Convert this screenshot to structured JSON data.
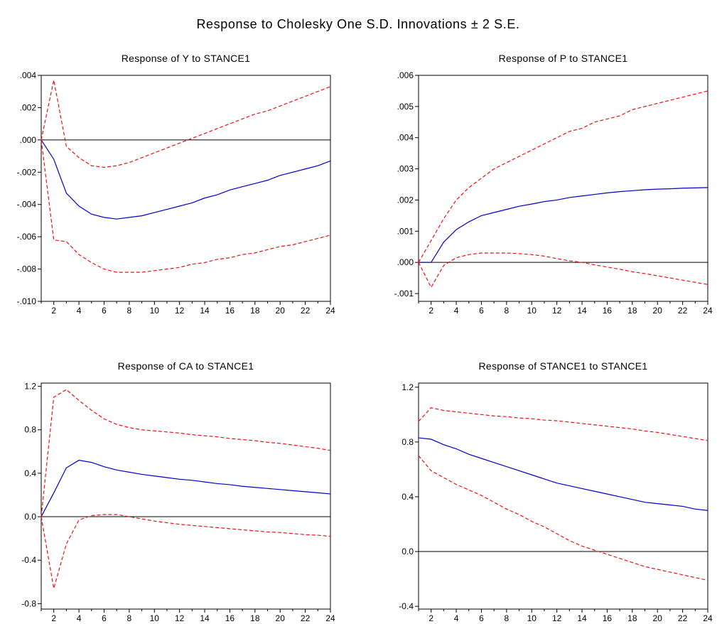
{
  "figure": {
    "title": "Response to Cholesky One S.D. Innovations ± 2 S.E."
  },
  "colors": {
    "irf": "#0000cc",
    "band": "#ee1111",
    "zero": "#000000",
    "frame": "#000000"
  },
  "chart_data": [
    {
      "type": "line",
      "title": "Response of Y to STANCE1",
      "xlabel": "",
      "ylabel": "",
      "x": [
        1,
        2,
        3,
        4,
        5,
        6,
        7,
        8,
        9,
        10,
        11,
        12,
        13,
        14,
        15,
        16,
        17,
        18,
        19,
        20,
        21,
        22,
        23,
        24
      ],
      "xlim": [
        1,
        24
      ],
      "ylim": [
        -0.01,
        0.004
      ],
      "xticks": [
        2,
        4,
        6,
        8,
        10,
        12,
        14,
        16,
        18,
        20,
        22,
        24
      ],
      "xtick_labels": [
        "2",
        "4",
        "6",
        "8",
        "10",
        "12",
        "14",
        "16",
        "18",
        "20",
        "22",
        "24"
      ],
      "yticks": [
        -0.01,
        -0.008,
        -0.006,
        -0.004,
        -0.002,
        0.0,
        0.002,
        0.004
      ],
      "ytick_labels": [
        "-.010",
        "-.008",
        "-.006",
        "-.004",
        "-.002",
        ".000",
        ".002",
        ".004"
      ],
      "zero_line": true,
      "grid": false,
      "series": [
        {
          "role": "irf",
          "values": [
            0.0,
            -0.0012,
            -0.0033,
            -0.0041,
            -0.0046,
            -0.0048,
            -0.0049,
            -0.0048,
            -0.0047,
            -0.0045,
            -0.0043,
            -0.0041,
            -0.0039,
            -0.0036,
            -0.0034,
            -0.0031,
            -0.0029,
            -0.0027,
            -0.0025,
            -0.0022,
            -0.002,
            -0.0018,
            -0.0016,
            -0.0013
          ]
        },
        {
          "role": "upper",
          "values": [
            0.0,
            0.0037,
            -0.0004,
            -0.0011,
            -0.0016,
            -0.0017,
            -0.0016,
            -0.0014,
            -0.0011,
            -0.0008,
            -0.0005,
            -0.0002,
            0.0001,
            0.0004,
            0.0007,
            0.001,
            0.0013,
            0.0016,
            0.0018,
            0.0021,
            0.0024,
            0.0027,
            0.003,
            0.0033
          ]
        },
        {
          "role": "lower",
          "values": [
            0.0,
            -0.0062,
            -0.0063,
            -0.0071,
            -0.0076,
            -0.008,
            -0.0082,
            -0.0082,
            -0.0082,
            -0.0081,
            -0.008,
            -0.0079,
            -0.0077,
            -0.0076,
            -0.0074,
            -0.0073,
            -0.0071,
            -0.007,
            -0.0068,
            -0.0066,
            -0.0065,
            -0.0063,
            -0.0061,
            -0.0059
          ]
        }
      ]
    },
    {
      "type": "line",
      "title": "Response of P to STANCE1",
      "xlabel": "",
      "ylabel": "",
      "x": [
        1,
        2,
        3,
        4,
        5,
        6,
        7,
        8,
        9,
        10,
        11,
        12,
        13,
        14,
        15,
        16,
        17,
        18,
        19,
        20,
        21,
        22,
        23,
        24
      ],
      "xlim": [
        1,
        24
      ],
      "ylim": [
        -0.00125,
        0.006
      ],
      "xticks": [
        2,
        4,
        6,
        8,
        10,
        12,
        14,
        16,
        18,
        20,
        22,
        24
      ],
      "xtick_labels": [
        "2",
        "4",
        "6",
        "8",
        "10",
        "12",
        "14",
        "16",
        "18",
        "20",
        "22",
        "24"
      ],
      "yticks": [
        -0.001,
        0.0,
        0.001,
        0.002,
        0.003,
        0.004,
        0.005,
        0.006
      ],
      "ytick_labels": [
        "-.001",
        ".000",
        ".001",
        ".002",
        ".003",
        ".004",
        ".005",
        ".006"
      ],
      "zero_line": true,
      "grid": false,
      "series": [
        {
          "role": "irf",
          "values": [
            0.0,
            0.0,
            0.00065,
            0.00105,
            0.0013,
            0.0015,
            0.0016,
            0.0017,
            0.0018,
            0.00187,
            0.00195,
            0.002,
            0.00208,
            0.00213,
            0.00218,
            0.00223,
            0.00227,
            0.0023,
            0.00233,
            0.00235,
            0.00236,
            0.00238,
            0.00239,
            0.0024
          ]
        },
        {
          "role": "upper",
          "values": [
            0.0,
            0.0007,
            0.0014,
            0.002,
            0.0024,
            0.0027,
            0.003,
            0.0032,
            0.0034,
            0.0036,
            0.0038,
            0.004,
            0.0042,
            0.0043,
            0.0045,
            0.0046,
            0.0047,
            0.0049,
            0.005,
            0.0051,
            0.0052,
            0.0053,
            0.0054,
            0.0055
          ]
        },
        {
          "role": "lower",
          "values": [
            0.0,
            -0.0008,
            -0.0001,
            0.00015,
            0.00025,
            0.0003,
            0.0003,
            0.0003,
            0.00028,
            0.00025,
            0.0002,
            0.00012,
            5e-05,
            0.0,
            -8e-05,
            -0.00015,
            -0.00022,
            -0.0003,
            -0.00036,
            -0.00043,
            -0.0005,
            -0.00057,
            -0.00064,
            -0.00071
          ]
        }
      ]
    },
    {
      "type": "line",
      "title": "Response of CA to STANCE1",
      "xlabel": "",
      "ylabel": "",
      "x": [
        1,
        2,
        3,
        4,
        5,
        6,
        7,
        8,
        9,
        10,
        11,
        12,
        13,
        14,
        15,
        16,
        17,
        18,
        19,
        20,
        21,
        22,
        23,
        24
      ],
      "xlim": [
        1,
        24
      ],
      "ylim": [
        -0.85,
        1.23
      ],
      "xticks": [
        2,
        4,
        6,
        8,
        10,
        12,
        14,
        16,
        18,
        20,
        22,
        24
      ],
      "xtick_labels": [
        "2",
        "4",
        "6",
        "8",
        "10",
        "12",
        "14",
        "16",
        "18",
        "20",
        "22",
        "24"
      ],
      "yticks": [
        -0.8,
        -0.4,
        0.0,
        0.4,
        0.8,
        1.2
      ],
      "ytick_labels": [
        "-0.8",
        "-0.4",
        "0.0",
        "0.4",
        "0.8",
        "1.2"
      ],
      "zero_line": true,
      "grid": false,
      "series": [
        {
          "role": "irf",
          "values": [
            0.0,
            0.22,
            0.45,
            0.52,
            0.5,
            0.46,
            0.43,
            0.41,
            0.39,
            0.375,
            0.36,
            0.345,
            0.335,
            0.32,
            0.305,
            0.295,
            0.28,
            0.27,
            0.26,
            0.25,
            0.24,
            0.23,
            0.22,
            0.21
          ]
        },
        {
          "role": "upper",
          "values": [
            0.0,
            1.1,
            1.17,
            1.07,
            0.98,
            0.9,
            0.85,
            0.82,
            0.8,
            0.79,
            0.78,
            0.77,
            0.755,
            0.745,
            0.735,
            0.72,
            0.71,
            0.7,
            0.685,
            0.675,
            0.66,
            0.645,
            0.63,
            0.61
          ]
        },
        {
          "role": "lower",
          "values": [
            0.0,
            -0.66,
            -0.25,
            -0.03,
            0.01,
            0.02,
            0.02,
            0.0,
            -0.02,
            -0.04,
            -0.055,
            -0.07,
            -0.08,
            -0.09,
            -0.1,
            -0.11,
            -0.12,
            -0.13,
            -0.14,
            -0.145,
            -0.155,
            -0.165,
            -0.17,
            -0.18
          ]
        }
      ]
    },
    {
      "type": "line",
      "title": "Response of STANCE1 to STANCE1",
      "xlabel": "",
      "ylabel": "",
      "x": [
        1,
        2,
        3,
        4,
        5,
        6,
        7,
        8,
        9,
        10,
        11,
        12,
        13,
        14,
        15,
        16,
        17,
        18,
        19,
        20,
        21,
        22,
        23,
        24
      ],
      "xlim": [
        1,
        24
      ],
      "ylim": [
        -0.42,
        1.23
      ],
      "xticks": [
        2,
        4,
        6,
        8,
        10,
        12,
        14,
        16,
        18,
        20,
        22,
        24
      ],
      "xtick_labels": [
        "2",
        "4",
        "6",
        "8",
        "10",
        "12",
        "14",
        "16",
        "18",
        "20",
        "22",
        "24"
      ],
      "yticks": [
        -0.4,
        0.0,
        0.4,
        0.8,
        1.2
      ],
      "ytick_labels": [
        "-0.4",
        "0.0",
        "0.4",
        "0.8",
        "1.2"
      ],
      "zero_line": true,
      "grid": false,
      "series": [
        {
          "role": "irf",
          "values": [
            0.83,
            0.82,
            0.78,
            0.75,
            0.71,
            0.68,
            0.65,
            0.62,
            0.59,
            0.56,
            0.53,
            0.5,
            0.48,
            0.46,
            0.44,
            0.42,
            0.4,
            0.38,
            0.36,
            0.35,
            0.34,
            0.33,
            0.31,
            0.3
          ]
        },
        {
          "role": "upper",
          "values": [
            0.95,
            1.05,
            1.03,
            1.02,
            1.01,
            1.0,
            0.99,
            0.985,
            0.975,
            0.97,
            0.96,
            0.955,
            0.945,
            0.935,
            0.925,
            0.915,
            0.905,
            0.895,
            0.88,
            0.87,
            0.855,
            0.84,
            0.825,
            0.81
          ]
        },
        {
          "role": "lower",
          "values": [
            0.7,
            0.59,
            0.54,
            0.49,
            0.45,
            0.41,
            0.36,
            0.31,
            0.27,
            0.22,
            0.18,
            0.13,
            0.08,
            0.04,
            0.01,
            -0.02,
            -0.05,
            -0.08,
            -0.11,
            -0.13,
            -0.15,
            -0.17,
            -0.19,
            -0.21
          ]
        }
      ]
    }
  ]
}
